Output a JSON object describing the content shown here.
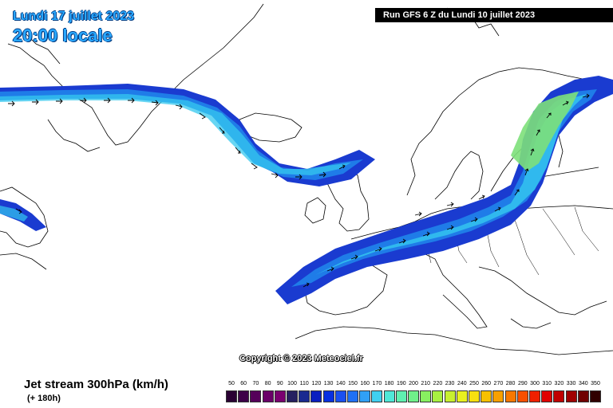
{
  "header": {
    "date_title": "Lundi 17 juillet 2023",
    "time_title": "20:00 locale",
    "run_info": "Run GFS 6 Z du Lundi 10 juillet 2023"
  },
  "copyright": "Copyright © 2023 Meteociel.fr",
  "map": {
    "variable_label": "Jet stream 300hPa (km/h)",
    "lead_time": "(+ 180h)"
  },
  "colors": {
    "jet_outer": "#1a3bd0",
    "jet_mid": "#1f7ce8",
    "jet_inner": "#35c8ef",
    "jet_core": "#7de07a",
    "coast_line": "#000000"
  },
  "legend": {
    "items": [
      {
        "label": "50",
        "color": "#2a0033"
      },
      {
        "label": "60",
        "color": "#3d0048"
      },
      {
        "label": "70",
        "color": "#55005a"
      },
      {
        "label": "80",
        "color": "#6a0068"
      },
      {
        "label": "90",
        "color": "#7a0070"
      },
      {
        "label": "100",
        "color": "#262060"
      },
      {
        "label": "110",
        "color": "#1a2a90"
      },
      {
        "label": "120",
        "color": "#0a1fc0"
      },
      {
        "label": "130",
        "color": "#0830e0"
      },
      {
        "label": "140",
        "color": "#1a50f0"
      },
      {
        "label": "150",
        "color": "#2070f5"
      },
      {
        "label": "160",
        "color": "#30a0f5"
      },
      {
        "label": "170",
        "color": "#40d0f0"
      },
      {
        "label": "180",
        "color": "#50e8d8"
      },
      {
        "label": "190",
        "color": "#60f0b0"
      },
      {
        "label": "200",
        "color": "#70f08a"
      },
      {
        "label": "210",
        "color": "#88f060"
      },
      {
        "label": "220",
        "color": "#a8f040"
      },
      {
        "label": "230",
        "color": "#c8f030"
      },
      {
        "label": "240",
        "color": "#e8f020"
      },
      {
        "label": "250",
        "color": "#f8e010"
      },
      {
        "label": "260",
        "color": "#f8c000"
      },
      {
        "label": "270",
        "color": "#f8a000"
      },
      {
        "label": "280",
        "color": "#f87800"
      },
      {
        "label": "290",
        "color": "#f85000"
      },
      {
        "label": "300",
        "color": "#f02000"
      },
      {
        "label": "310",
        "color": "#e00000"
      },
      {
        "label": "320",
        "color": "#c00000"
      },
      {
        "label": "330",
        "color": "#a00000"
      },
      {
        "label": "340",
        "color": "#700000"
      },
      {
        "label": "350",
        "color": "#300000"
      }
    ]
  }
}
